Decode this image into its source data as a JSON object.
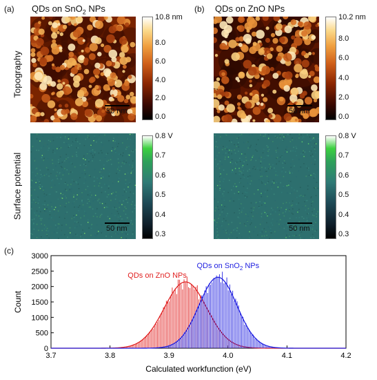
{
  "panels": {
    "a": {
      "tag": "(a)",
      "title": "QDs on SnO",
      "title_sub": "2",
      "title_tail": " NPs"
    },
    "b": {
      "tag": "(b)",
      "title": "QDs on ZnO NPs"
    },
    "c": {
      "tag": "(c)"
    }
  },
  "row_labels": {
    "top": "Topography",
    "bottom": "Surface potential"
  },
  "scalebar": "50 nm",
  "colorbars": {
    "topo_a": {
      "ticks": [
        "10.8 nm",
        "8.0",
        "6.0",
        "4.0",
        "2.0",
        "0.0"
      ],
      "values": [
        10.8,
        8.0,
        6.0,
        4.0,
        2.0,
        0.0
      ],
      "range": [
        0,
        10.8
      ]
    },
    "topo_b": {
      "ticks": [
        "10.2 nm",
        "8.0",
        "6.0",
        "4.0",
        "2.0",
        "0.0"
      ],
      "values": [
        10.2,
        8.0,
        6.0,
        4.0,
        2.0,
        0.0
      ],
      "range": [
        0,
        10.2
      ]
    },
    "sp_a": {
      "ticks": [
        "0.8 V",
        "0.7",
        "0.6",
        "0.5",
        "0.4",
        "0.3"
      ],
      "values": [
        0.8,
        0.7,
        0.6,
        0.5,
        0.4,
        0.3
      ],
      "range": [
        0.3,
        0.8
      ]
    },
    "sp_b": {
      "ticks": [
        "0.8 V",
        "0.7",
        "0.6",
        "0.5",
        "0.4",
        "0.3"
      ],
      "values": [
        0.8,
        0.7,
        0.6,
        0.5,
        0.4,
        0.3
      ],
      "range": [
        0.3,
        0.8
      ]
    }
  },
  "colors": {
    "sno2": "#1f1fe0",
    "zno": "#e01f1f",
    "topo_low": "#1a0500",
    "topo_high": "#fffbe8",
    "sp_mid": "#2f7a76"
  },
  "chart_data": {
    "type": "histogram",
    "xlabel": "Calculated workfunction (eV)",
    "ylabel": "Count",
    "xlim": [
      3.7,
      4.2
    ],
    "ylim": [
      0,
      3000
    ],
    "xticks": [
      "3.7",
      "3.8",
      "3.9",
      "4.0",
      "4.1",
      "4.2"
    ],
    "xtick_values": [
      3.7,
      3.8,
      3.9,
      4.0,
      4.1,
      4.2
    ],
    "yticks": [
      "0",
      "500",
      "1000",
      "1500",
      "2000",
      "2500",
      "3000"
    ],
    "ytick_values": [
      0,
      500,
      1000,
      1500,
      2000,
      2500,
      3000
    ],
    "series": [
      {
        "name": "QDs on ZnO NPs",
        "color": "#e01f1f",
        "fit": "gaussian",
        "center": 3.928,
        "sigma": 0.036,
        "amplitude": 2150,
        "label_x": 3.88,
        "label_y": 2280
      },
      {
        "name": "QDs on SnO",
        "name_sub": "2",
        "name_tail": " NPs",
        "color": "#1f1fe0",
        "fit": "gaussian",
        "center": 3.983,
        "sigma": 0.032,
        "amplitude": 2300,
        "label_x": 4.0,
        "label_y": 2600
      }
    ]
  }
}
